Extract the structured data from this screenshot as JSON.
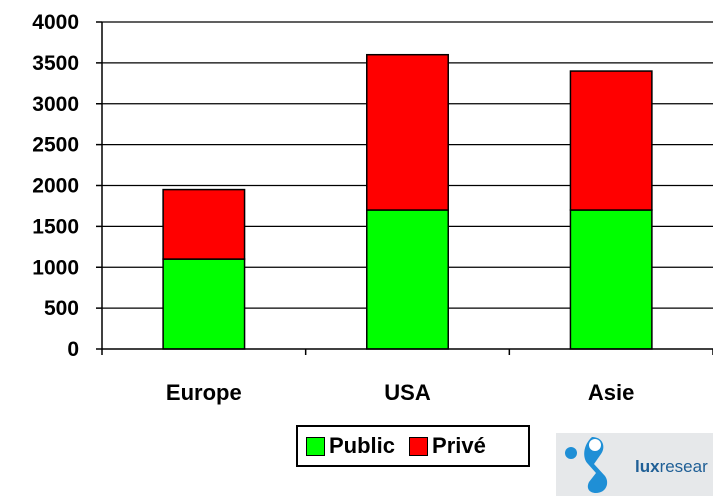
{
  "chart_data": {
    "type": "bar",
    "stacked": true,
    "categories": [
      "Europe",
      "USA",
      "Asie"
    ],
    "series": [
      {
        "name": "Public",
        "values": [
          1100,
          1700,
          1700
        ],
        "color": "#00ff00"
      },
      {
        "name": "Privé",
        "values": [
          850,
          1900,
          1700
        ],
        "color": "#ff0000"
      }
    ],
    "ylim": [
      0,
      4000
    ],
    "yticks": [
      "0",
      "500",
      "1000",
      "1500",
      "2000",
      "2500",
      "3000",
      "3500",
      "4000"
    ],
    "grid": true,
    "legend_position": "bottom"
  },
  "logo": {
    "text_bold": "lux",
    "text_rest": "resear"
  }
}
